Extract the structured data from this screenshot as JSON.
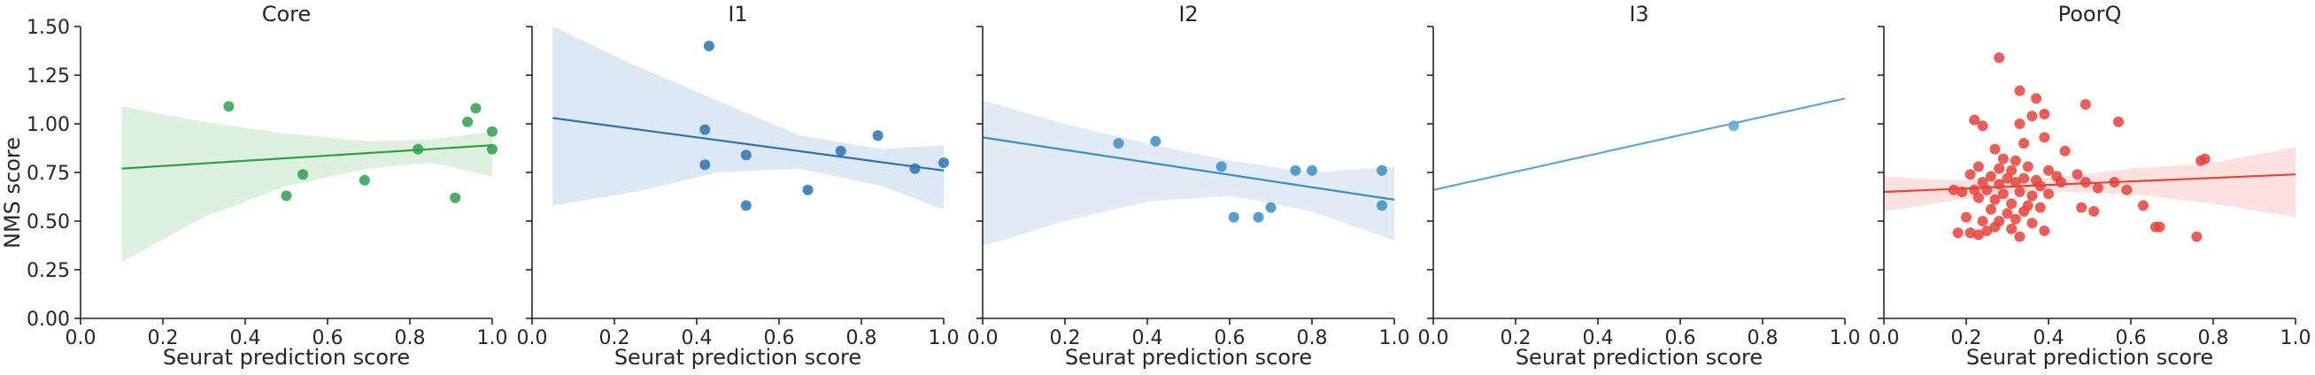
{
  "chart_data": [
    {
      "type": "scatter",
      "title": "Core",
      "xlabel": "Seurat prediction score",
      "ylabel": "NMS score",
      "xlim": [
        0,
        1
      ],
      "ylim": [
        0,
        1.5
      ],
      "xticks": [
        "0.0",
        "0.2",
        "0.4",
        "0.6",
        "0.8",
        "1.0"
      ],
      "yticks": [
        "0.00",
        "0.25",
        "0.50",
        "0.75",
        "1.00",
        "1.25",
        "1.50"
      ],
      "color": "#2ca048",
      "fill": "#d8eed9",
      "points": [
        [
          0.36,
          1.09
        ],
        [
          0.5,
          0.63
        ],
        [
          0.54,
          0.74
        ],
        [
          0.69,
          0.71
        ],
        [
          0.82,
          0.87
        ],
        [
          0.91,
          0.62
        ],
        [
          0.94,
          1.01
        ],
        [
          0.96,
          1.08
        ],
        [
          1.0,
          0.96
        ],
        [
          1.0,
          0.87
        ]
      ],
      "fit": {
        "x0": 0.1,
        "x1": 1.0,
        "y0": 0.77,
        "y1": 0.89
      },
      "band": {
        "upper": [
          [
            0.1,
            1.09
          ],
          [
            0.3,
            1.01
          ],
          [
            0.5,
            0.95
          ],
          [
            0.7,
            0.91
          ],
          [
            0.85,
            0.92
          ],
          [
            1.0,
            0.96
          ]
        ],
        "lower": [
          [
            0.1,
            0.29
          ],
          [
            0.3,
            0.52
          ],
          [
            0.5,
            0.68
          ],
          [
            0.7,
            0.77
          ],
          [
            0.85,
            0.8
          ],
          [
            1.0,
            0.73
          ]
        ]
      }
    },
    {
      "type": "scatter",
      "title": "I1",
      "xlabel": "Seurat prediction score",
      "ylabel": "",
      "xlim": [
        0,
        1
      ],
      "ylim": [
        0,
        1.5
      ],
      "xticks": [
        "0.0",
        "0.2",
        "0.4",
        "0.6",
        "0.8",
        "1.0"
      ],
      "yticks": [],
      "color": "#2b72b3",
      "fill": "#d6e4f1",
      "points": [
        [
          0.43,
          1.4
        ],
        [
          0.42,
          0.97
        ],
        [
          0.42,
          0.79
        ],
        [
          0.52,
          0.84
        ],
        [
          0.52,
          0.58
        ],
        [
          0.67,
          0.66
        ],
        [
          0.75,
          0.86
        ],
        [
          0.84,
          0.94
        ],
        [
          0.93,
          0.77
        ],
        [
          1.0,
          0.8
        ]
      ],
      "fit": {
        "x0": 0.05,
        "x1": 1.0,
        "y0": 1.03,
        "y1": 0.76
      },
      "band": {
        "upper": [
          [
            0.05,
            1.5
          ],
          [
            0.25,
            1.3
          ],
          [
            0.45,
            1.12
          ],
          [
            0.65,
            0.94
          ],
          [
            0.85,
            0.87
          ],
          [
            1.0,
            0.89
          ]
        ],
        "lower": [
          [
            0.05,
            0.58
          ],
          [
            0.25,
            0.65
          ],
          [
            0.45,
            0.75
          ],
          [
            0.65,
            0.77
          ],
          [
            0.85,
            0.68
          ],
          [
            1.0,
            0.56
          ]
        ]
      }
    },
    {
      "type": "scatter",
      "title": "I2",
      "xlabel": "Seurat prediction score",
      "ylabel": "",
      "xlim": [
        0,
        1
      ],
      "ylim": [
        0,
        1.5
      ],
      "xticks": [
        "0.0",
        "0.2",
        "0.4",
        "0.6",
        "0.8",
        "1.0"
      ],
      "yticks": [],
      "color": "#3a8ec4",
      "fill": "#dbe8f3",
      "points": [
        [
          0.33,
          0.9
        ],
        [
          0.42,
          0.91
        ],
        [
          0.58,
          0.78
        ],
        [
          0.61,
          0.52
        ],
        [
          0.67,
          0.52
        ],
        [
          0.7,
          0.57
        ],
        [
          0.76,
          0.76
        ],
        [
          0.8,
          0.76
        ],
        [
          0.97,
          0.76
        ],
        [
          0.97,
          0.58
        ]
      ],
      "fit": {
        "x0": 0.0,
        "x1": 1.0,
        "y0": 0.93,
        "y1": 0.61
      },
      "band": {
        "upper": [
          [
            0.0,
            1.12
          ],
          [
            0.2,
            1.0
          ],
          [
            0.4,
            0.9
          ],
          [
            0.6,
            0.81
          ],
          [
            0.8,
            0.75
          ],
          [
            1.0,
            0.78
          ]
        ],
        "lower": [
          [
            0.0,
            0.37
          ],
          [
            0.2,
            0.5
          ],
          [
            0.4,
            0.6
          ],
          [
            0.6,
            0.63
          ],
          [
            0.8,
            0.55
          ],
          [
            1.0,
            0.4
          ]
        ]
      }
    },
    {
      "type": "scatter",
      "title": "I3",
      "xlabel": "Seurat prediction score",
      "ylabel": "",
      "xlim": [
        0,
        1
      ],
      "ylim": [
        0,
        1.5
      ],
      "xticks": [
        "0.0",
        "0.2",
        "0.4",
        "0.6",
        "0.8",
        "1.0"
      ],
      "yticks": [],
      "color": "#5aa7d3",
      "fill": "#e3eff8",
      "points": [
        [
          0.73,
          0.99
        ]
      ],
      "fit": {
        "x0": 0.0,
        "x1": 1.0,
        "y0": 0.66,
        "y1": 1.13
      },
      "band": null
    },
    {
      "type": "scatter",
      "title": "PoorQ",
      "xlabel": "Seurat prediction score",
      "ylabel": "",
      "xlim": [
        0,
        1
      ],
      "ylim": [
        0,
        1.5
      ],
      "xticks": [
        "0.0",
        "0.2",
        "0.4",
        "0.6",
        "0.8",
        "1.0"
      ],
      "yticks": [],
      "color": "#e8423a",
      "fill": "#fbdcdb",
      "points": [
        [
          0.28,
          1.34
        ],
        [
          0.33,
          1.17
        ],
        [
          0.37,
          1.13
        ],
        [
          0.36,
          1.04
        ],
        [
          0.39,
          1.05
        ],
        [
          0.22,
          1.02
        ],
        [
          0.24,
          0.99
        ],
        [
          0.33,
          1.0
        ],
        [
          0.49,
          1.1
        ],
        [
          0.57,
          1.01
        ],
        [
          0.39,
          0.93
        ],
        [
          0.34,
          0.9
        ],
        [
          0.27,
          0.87
        ],
        [
          0.44,
          0.86
        ],
        [
          0.29,
          0.82
        ],
        [
          0.32,
          0.81
        ],
        [
          0.23,
          0.78
        ],
        [
          0.28,
          0.77
        ],
        [
          0.31,
          0.76
        ],
        [
          0.35,
          0.78
        ],
        [
          0.4,
          0.76
        ],
        [
          0.21,
          0.74
        ],
        [
          0.26,
          0.73
        ],
        [
          0.3,
          0.72
        ],
        [
          0.34,
          0.72
        ],
        [
          0.37,
          0.71
        ],
        [
          0.42,
          0.73
        ],
        [
          0.47,
          0.74
        ],
        [
          0.24,
          0.7
        ],
        [
          0.28,
          0.69
        ],
        [
          0.32,
          0.7
        ],
        [
          0.38,
          0.68
        ],
        [
          0.43,
          0.7
        ],
        [
          0.49,
          0.7
        ],
        [
          0.52,
          0.67
        ],
        [
          0.17,
          0.66
        ],
        [
          0.19,
          0.65
        ],
        [
          0.22,
          0.66
        ],
        [
          0.25,
          0.66
        ],
        [
          0.29,
          0.64
        ],
        [
          0.33,
          0.65
        ],
        [
          0.36,
          0.63
        ],
        [
          0.4,
          0.64
        ],
        [
          0.56,
          0.7
        ],
        [
          0.59,
          0.66
        ],
        [
          0.23,
          0.62
        ],
        [
          0.27,
          0.61
        ],
        [
          0.31,
          0.59
        ],
        [
          0.35,
          0.58
        ],
        [
          0.26,
          0.56
        ],
        [
          0.3,
          0.54
        ],
        [
          0.34,
          0.55
        ],
        [
          0.38,
          0.57
        ],
        [
          0.48,
          0.57
        ],
        [
          0.51,
          0.55
        ],
        [
          0.63,
          0.58
        ],
        [
          0.2,
          0.52
        ],
        [
          0.24,
          0.5
        ],
        [
          0.28,
          0.5
        ],
        [
          0.32,
          0.51
        ],
        [
          0.36,
          0.49
        ],
        [
          0.27,
          0.47
        ],
        [
          0.31,
          0.46
        ],
        [
          0.39,
          0.45
        ],
        [
          0.18,
          0.44
        ],
        [
          0.21,
          0.44
        ],
        [
          0.23,
          0.43
        ],
        [
          0.25,
          0.45
        ],
        [
          0.33,
          0.42
        ],
        [
          0.66,
          0.47
        ],
        [
          0.67,
          0.47
        ],
        [
          0.76,
          0.42
        ],
        [
          0.77,
          0.81
        ],
        [
          0.78,
          0.82
        ]
      ],
      "fit": {
        "x0": 0.0,
        "x1": 1.0,
        "y0": 0.65,
        "y1": 0.74
      },
      "band": {
        "upper": [
          [
            0.0,
            0.73
          ],
          [
            0.15,
            0.71
          ],
          [
            0.3,
            0.71
          ],
          [
            0.45,
            0.73
          ],
          [
            0.6,
            0.77
          ],
          [
            0.8,
            0.8
          ],
          [
            1.0,
            0.88
          ]
        ],
        "lower": [
          [
            0.0,
            0.55
          ],
          [
            0.15,
            0.6
          ],
          [
            0.3,
            0.64
          ],
          [
            0.45,
            0.65
          ],
          [
            0.6,
            0.64
          ],
          [
            0.8,
            0.59
          ],
          [
            1.0,
            0.52
          ]
        ]
      }
    }
  ]
}
